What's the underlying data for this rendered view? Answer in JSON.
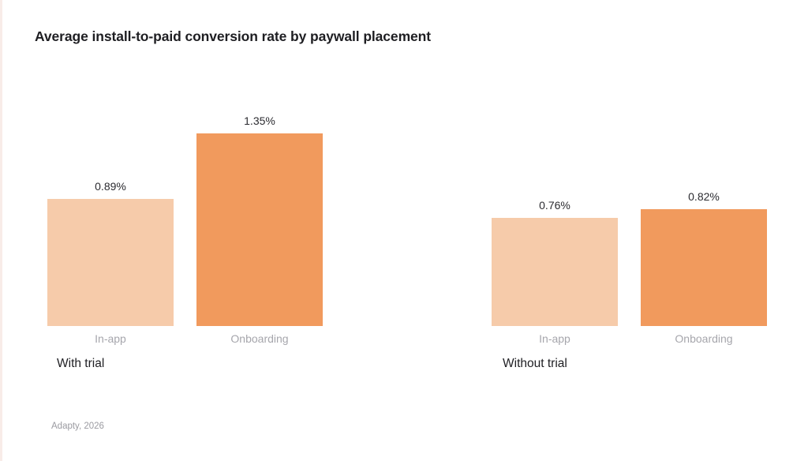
{
  "page": {
    "title": "Average install-to-paid conversion rate by paywall placement",
    "source": "Adapty, 2026"
  },
  "chart_data": {
    "type": "bar",
    "title": "Average install-to-paid conversion rate by paywall placement",
    "unit": "%",
    "categories": [
      "In-app",
      "Onboarding"
    ],
    "groups": [
      {
        "label": "With trial",
        "series": [
          {
            "category": "In-app",
            "value": 0.89,
            "value_label": "0.89%"
          },
          {
            "category": "Onboarding",
            "value": 1.35,
            "value_label": "1.35%"
          }
        ]
      },
      {
        "label": "Without trial",
        "series": [
          {
            "category": "In-app",
            "value": 0.76,
            "value_label": "0.76%"
          },
          {
            "category": "Onboarding",
            "value": 0.82,
            "value_label": "0.82%"
          }
        ]
      }
    ],
    "ylim": [
      0,
      1.57
    ],
    "axes_visible": false,
    "grid": false,
    "legend_position": "none",
    "source": "Adapty, 2026",
    "colors": {
      "in_app_bar": "#f6cbaa",
      "onboarding_bar": "#f19a5d",
      "title_text": "#1e1e22",
      "value_label_text": "#2b2b30",
      "category_label_text": "#a6a6ac",
      "group_label_text": "#202024",
      "source_text": "#9b9ba1",
      "background": "#ffffff"
    }
  }
}
